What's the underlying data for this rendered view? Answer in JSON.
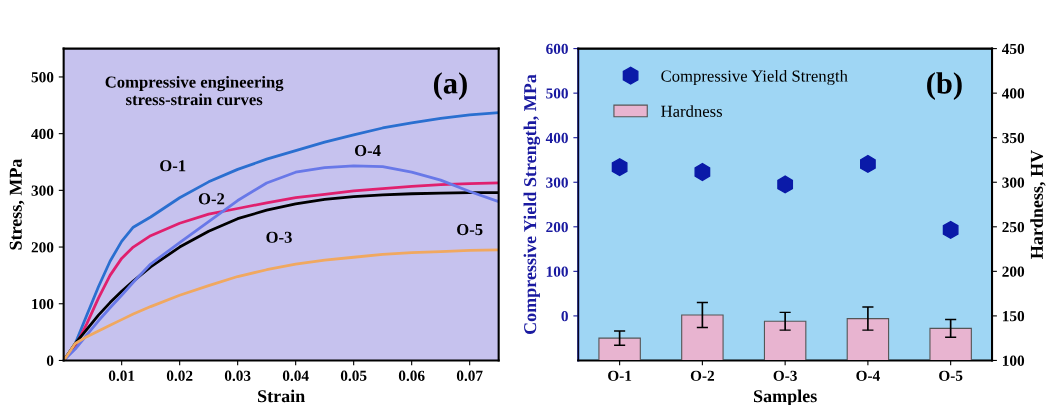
{
  "chart_data": [
    {
      "type": "line",
      "xlabel": "Strain",
      "ylabel": "Stress, MPa",
      "xlim": [
        0,
        0.075
      ],
      "xticks": [
        0.01,
        0.02,
        0.03,
        0.04,
        0.05,
        0.06,
        0.07
      ],
      "ylim": [
        0,
        550
      ],
      "yticks": [
        0,
        100,
        200,
        300,
        400,
        500
      ],
      "grid": false,
      "marker": "none",
      "x": [
        0,
        0.002,
        0.004,
        0.006,
        0.008,
        0.01,
        0.012,
        0.015,
        0.02,
        0.025,
        0.03,
        0.035,
        0.04,
        0.045,
        0.05,
        0.055,
        0.06,
        0.065,
        0.07,
        0.075
      ],
      "series": [
        {
          "name": "O-1",
          "color": "#2a6fd0",
          "values": [
            0,
            30,
            80,
            130,
            175,
            210,
            235,
            253,
            287,
            315,
            337,
            355,
            370,
            385,
            398,
            410,
            419,
            427,
            433,
            437
          ]
        },
        {
          "name": "O-2",
          "color": "#e0206e",
          "values": [
            0,
            25,
            65,
            110,
            150,
            180,
            200,
            220,
            242,
            258,
            268,
            278,
            287,
            293,
            299,
            303,
            307,
            310,
            312,
            313
          ]
        },
        {
          "name": "O-3",
          "color": "#000000",
          "values": [
            0,
            30,
            55,
            80,
            102,
            122,
            140,
            165,
            200,
            228,
            250,
            265,
            276,
            284,
            289,
            292,
            294,
            295,
            296,
            296
          ]
        },
        {
          "name": "O-4",
          "color": "#6878e8",
          "values": [
            0,
            20,
            45,
            70,
            93,
            115,
            138,
            170,
            208,
            245,
            282,
            313,
            332,
            340,
            343,
            342,
            332,
            318,
            298,
            280
          ]
        },
        {
          "name": "O-5",
          "color": "#f0a860",
          "values": [
            0,
            30,
            42,
            52,
            62,
            72,
            82,
            95,
            115,
            132,
            148,
            160,
            170,
            177,
            182,
            187,
            190,
            192,
            194,
            195
          ]
        }
      ],
      "annotations": [
        "Compressive engineering\nstress-strain curves",
        "(a)"
      ]
    },
    {
      "type": "bar",
      "xlabel": "Samples",
      "ylabel": "Compressive Yield Strength, MPa",
      "y2label": "Hardness, HV",
      "categories": [
        "O-1",
        "O-2",
        "O-3",
        "O-4",
        "O-5"
      ],
      "ylim": [
        -100,
        600
      ],
      "yticks": [
        0,
        100,
        200,
        300,
        400,
        500,
        600
      ],
      "y2lim": [
        100,
        450
      ],
      "y2ticks": [
        100,
        150,
        200,
        250,
        300,
        350,
        400,
        450
      ],
      "grid": false,
      "legend": "top left",
      "series": [
        {
          "name": "Compressive Yield Strength",
          "type": "scatter",
          "color": "#0a1aa8",
          "values": [
            334,
            323,
            295,
            341,
            193
          ]
        },
        {
          "name": "Hardness",
          "type": "bar",
          "axis": "y2",
          "color": "#e8b4d0",
          "values": [
            125,
            151,
            144,
            147,
            136
          ],
          "errors": [
            8,
            14,
            10,
            13,
            10
          ]
        }
      ],
      "annotations": [
        "(b)"
      ]
    }
  ]
}
